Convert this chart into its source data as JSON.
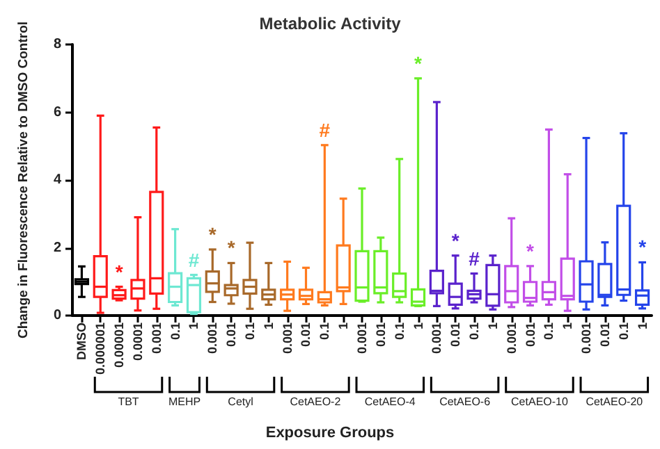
{
  "chart_data": {
    "type": "box",
    "title": "Metabolic Activity",
    "xlabel": "Exposure Groups",
    "ylabel": "Change in Fluorescence Relative to DMSO Control",
    "categories": [
      "DMSO",
      "0.000001",
      "0.00001",
      "0.0001",
      "0.001",
      "0.1",
      "1",
      "0.001",
      "0.01",
      "0.1",
      "1",
      "0.001",
      "0.01",
      "0.1",
      "1",
      "0.001",
      "0.01",
      "0.1",
      "1",
      "0.001",
      "0.01",
      "0.1",
      "1",
      "0.001",
      "0.01",
      "0.1",
      "1",
      "0.001",
      "0.01",
      "0.1",
      "1"
    ],
    "boxes": [
      {
        "low": 0.55,
        "q1": 0.93,
        "median": 1.0,
        "q3": 1.07,
        "high": 1.45
      },
      {
        "low": 0.08,
        "q1": 0.55,
        "median": 0.85,
        "q3": 1.75,
        "high": 5.9
      },
      {
        "low": 0.45,
        "q1": 0.5,
        "median": 0.6,
        "q3": 0.75,
        "high": 0.85
      },
      {
        "low": 0.15,
        "q1": 0.5,
        "median": 0.8,
        "q3": 1.05,
        "high": 2.9
      },
      {
        "low": 0.2,
        "q1": 0.65,
        "median": 1.1,
        "q3": 3.65,
        "high": 5.55
      },
      {
        "low": 0.3,
        "q1": 0.4,
        "median": 0.85,
        "q3": 1.25,
        "high": 2.55
      },
      {
        "low": 0.05,
        "q1": 0.1,
        "median": 0.9,
        "q3": 1.1,
        "high": 1.2
      },
      {
        "low": 0.4,
        "q1": 0.7,
        "median": 0.95,
        "q3": 1.3,
        "high": 1.95
      },
      {
        "low": 0.35,
        "q1": 0.6,
        "median": 0.8,
        "q3": 0.9,
        "high": 1.55
      },
      {
        "low": 0.2,
        "q1": 0.65,
        "median": 0.85,
        "q3": 1.05,
        "high": 2.15
      },
      {
        "low": 0.32,
        "q1": 0.48,
        "median": 0.62,
        "q3": 0.76,
        "high": 1.55
      },
      {
        "low": 0.14,
        "q1": 0.48,
        "median": 0.62,
        "q3": 0.76,
        "high": 1.59
      },
      {
        "low": 0.34,
        "q1": 0.48,
        "median": 0.58,
        "q3": 0.76,
        "high": 1.41
      },
      {
        "low": 0.3,
        "q1": 0.39,
        "median": 0.48,
        "q3": 0.69,
        "high": 5.03
      },
      {
        "low": 0.34,
        "q1": 0.72,
        "median": 0.83,
        "q3": 2.07,
        "high": 3.45
      },
      {
        "low": 0.41,
        "q1": 0.44,
        "median": 0.83,
        "q3": 1.9,
        "high": 3.75
      },
      {
        "low": 0.39,
        "q1": 0.66,
        "median": 0.83,
        "q3": 1.9,
        "high": 2.3
      },
      {
        "low": 0.39,
        "q1": 0.55,
        "median": 0.72,
        "q3": 1.24,
        "high": 4.62
      },
      {
        "low": 0.28,
        "q1": 0.3,
        "median": 0.41,
        "q3": 0.77,
        "high": 7.0
      },
      {
        "low": 0.28,
        "q1": 0.66,
        "median": 0.73,
        "q3": 1.32,
        "high": 6.3
      },
      {
        "low": 0.21,
        "q1": 0.32,
        "median": 0.55,
        "q3": 0.94,
        "high": 1.77
      },
      {
        "low": 0.39,
        "q1": 0.5,
        "median": 0.63,
        "q3": 0.73,
        "high": 1.24
      },
      {
        "low": 0.18,
        "q1": 0.29,
        "median": 0.63,
        "q3": 1.49,
        "high": 1.77
      },
      {
        "low": 0.25,
        "q1": 0.39,
        "median": 0.72,
        "q3": 1.46,
        "high": 2.87
      },
      {
        "low": 0.3,
        "q1": 0.41,
        "median": 0.52,
        "q3": 0.99,
        "high": 1.46
      },
      {
        "low": 0.32,
        "q1": 0.48,
        "median": 0.69,
        "q3": 0.99,
        "high": 5.49
      },
      {
        "low": 0.14,
        "q1": 0.48,
        "median": 0.58,
        "q3": 1.68,
        "high": 4.17
      },
      {
        "low": 0.18,
        "q1": 0.41,
        "median": 0.92,
        "q3": 1.6,
        "high": 5.24
      },
      {
        "low": 0.3,
        "q1": 0.55,
        "median": 0.61,
        "q3": 1.52,
        "high": 2.16
      },
      {
        "low": 0.44,
        "q1": 0.61,
        "median": 0.77,
        "q3": 3.24,
        "high": 5.38
      },
      {
        "low": 0.21,
        "q1": 0.32,
        "median": 0.59,
        "q3": 0.74,
        "high": 1.57
      }
    ],
    "colors": [
      "#000000",
      "#ff1a1a",
      "#ff1a1a",
      "#ff1a1a",
      "#ff1a1a",
      "#6ee8d2",
      "#6ee8d2",
      "#a8692a",
      "#a8692a",
      "#a8692a",
      "#a8692a",
      "#ff7a1e",
      "#ff7a1e",
      "#ff7a1e",
      "#ff7a1e",
      "#6aee28",
      "#6aee28",
      "#6aee28",
      "#6aee28",
      "#5a22cc",
      "#5a22cc",
      "#5a22cc",
      "#5a22cc",
      "#c24ee8",
      "#c24ee8",
      "#c24ee8",
      "#c24ee8",
      "#2444ea",
      "#2444ea",
      "#2444ea",
      "#2444ea"
    ],
    "value_labels": [
      null,
      null,
      "*",
      null,
      null,
      null,
      "#",
      "*",
      "*",
      null,
      null,
      null,
      null,
      "#",
      null,
      null,
      null,
      null,
      "*",
      null,
      "*",
      "#",
      null,
      null,
      "*",
      null,
      null,
      null,
      null,
      null,
      "*"
    ],
    "annotations": [
      "TBT",
      "MEHP",
      "Cetyl",
      "CetAEO-2",
      "CetAEO-4",
      "CetAEO-6",
      "CetAEO-10",
      "CetAEO-20"
    ],
    "ylim": [
      0,
      8
    ],
    "yticks": [
      0,
      2,
      4,
      6,
      8
    ],
    "grid": false
  }
}
